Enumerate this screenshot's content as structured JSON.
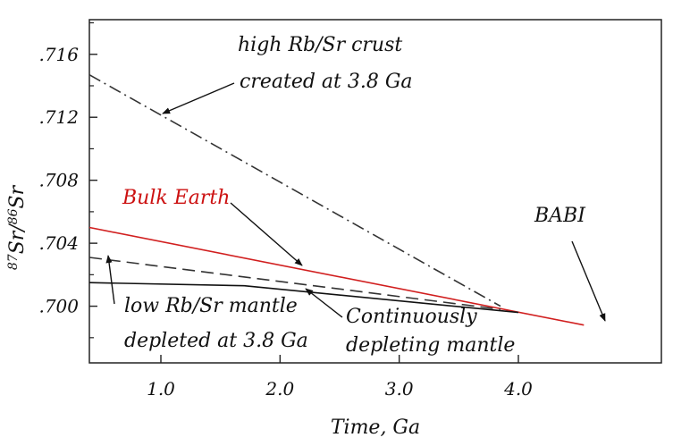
{
  "chart_data": {
    "type": "line",
    "xlabel": "Time, Ga",
    "ylabel_main": "Sr",
    "ylabel_sup1": "87",
    "ylabel_sup2": "86",
    "ylabel_sep": "/",
    "xlim": [
      0.4,
      5.2
    ],
    "ylim": [
      0.6964,
      0.7182
    ],
    "xticks": [
      1.0,
      2.0,
      3.0,
      4.0
    ],
    "xtick_labels": [
      "1.0",
      "2.0",
      "3.0",
      "4.0"
    ],
    "yticks": [
      0.7,
      0.704,
      0.708,
      0.712,
      0.716
    ],
    "ytick_labels": [
      ".700",
      ".704",
      ".708",
      ".712",
      ".716"
    ],
    "series": [
      {
        "name": "high Rb/Sr crust created at 3.8 Ga",
        "style": "dashdot",
        "color": "#333333",
        "x": [
          0.4,
          3.85
        ],
        "y": [
          0.7147,
          0.7
        ]
      },
      {
        "name": "Bulk Earth",
        "style": "solid",
        "color": "#d11f1f",
        "x": [
          0.4,
          4.55
        ],
        "y": [
          0.705,
          0.6988
        ]
      },
      {
        "name": "low Rb/Sr mantle depleted at 3.8 Ga",
        "style": "dashed",
        "color": "#333333",
        "x": [
          0.4,
          3.85
        ],
        "y": [
          0.7031,
          0.6998
        ]
      },
      {
        "name": "Continuously depleting mantle",
        "style": "solid",
        "color": "#111111",
        "x": [
          0.4,
          1.7,
          4.0
        ],
        "y": [
          0.7015,
          0.7013,
          0.6996
        ]
      }
    ],
    "annotations": [
      {
        "id": "crust",
        "lines": [
          "high Rb/Sr crust",
          "created at 3.8 Ga"
        ],
        "color": "#111111"
      },
      {
        "id": "bulk",
        "lines": [
          "Bulk Earth"
        ],
        "color": "#cc1111"
      },
      {
        "id": "babi",
        "lines": [
          "BABI"
        ],
        "color": "#111111"
      },
      {
        "id": "low",
        "lines": [
          "low Rb/Sr mantle",
          "depleted at 3.8 Ga"
        ],
        "color": "#111111"
      },
      {
        "id": "cont",
        "lines": [
          "Continuously",
          "depleting mantle"
        ],
        "color": "#111111"
      }
    ]
  }
}
